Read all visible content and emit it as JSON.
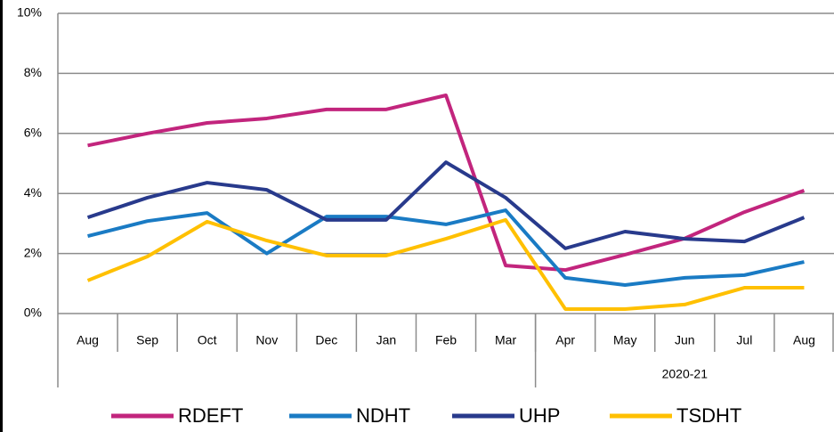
{
  "chart_data": {
    "type": "line",
    "categories": [
      "Aug",
      "Sep",
      "Oct",
      "Nov",
      "Dec",
      "Jan",
      "Feb",
      "Mar",
      "Apr",
      "May",
      "Jun",
      "Jul",
      "Aug"
    ],
    "category_groups": [
      null,
      null,
      null,
      null,
      null,
      null,
      null,
      null,
      "2020-21",
      "2020-21",
      "2020-21",
      "2020-21",
      "2020-21"
    ],
    "series": [
      {
        "name": "RDEFT",
        "color": "#c2257d",
        "values": [
          5.6,
          6.0,
          6.35,
          6.5,
          6.8,
          6.8,
          7.27,
          1.6,
          1.45,
          1.96,
          2.5,
          3.38,
          4.1
        ]
      },
      {
        "name": "NDHT",
        "color": "#1a7bc4",
        "values": [
          2.58,
          3.08,
          3.35,
          2.0,
          3.23,
          3.23,
          2.97,
          3.44,
          1.19,
          0.95,
          1.19,
          1.28,
          1.72
        ]
      },
      {
        "name": "UHP",
        "color": "#283a8c",
        "values": [
          3.2,
          3.86,
          4.36,
          4.12,
          3.12,
          3.12,
          5.04,
          3.86,
          2.17,
          2.73,
          2.49,
          2.4,
          3.2
        ]
      },
      {
        "name": "TSDHT",
        "color": "#ffc000",
        "values": [
          1.1,
          1.9,
          3.06,
          2.43,
          1.93,
          1.93,
          2.49,
          3.12,
          0.15,
          0.15,
          0.3,
          0.86,
          0.86
        ]
      }
    ],
    "ylim": [
      0,
      10
    ],
    "yticks": [
      {
        "value": 0,
        "label": "0%"
      },
      {
        "value": 2,
        "label": "2%"
      },
      {
        "value": 4,
        "label": "4%"
      },
      {
        "value": 6,
        "label": "6%"
      },
      {
        "value": 8,
        "label": "8%"
      },
      {
        "value": 10,
        "label": "10%"
      }
    ],
    "grid": true,
    "legend": "bottom"
  }
}
